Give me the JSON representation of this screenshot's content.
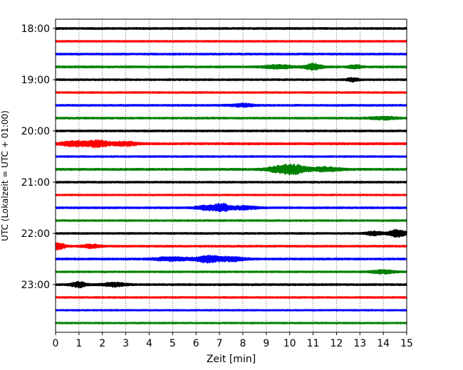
{
  "chart_data": {
    "type": "line",
    "title": "",
    "xlabel": "Zeit  [min]",
    "ylabel": "UTC (Lokalzeit = UTC + 01:00)",
    "xlim": [
      0,
      15
    ],
    "x_ticks": [
      0,
      1,
      2,
      3,
      4,
      5,
      6,
      7,
      8,
      9,
      10,
      11,
      12,
      13,
      14,
      15
    ],
    "x_grid": true,
    "y_ticks": [
      "18:00",
      "19:00",
      "20:00",
      "21:00",
      "22:00",
      "23:00"
    ],
    "y_tick_rows": [
      0,
      4,
      8,
      12,
      16,
      20
    ],
    "trace_interval_min": 15,
    "trace_colors": [
      "#000000",
      "#ff0000",
      "#0000ff",
      "#008000"
    ],
    "traces": [
      {
        "start": "18:00",
        "noise": 0.14,
        "events": []
      },
      {
        "start": "18:15",
        "noise": 0.12,
        "events": []
      },
      {
        "start": "18:30",
        "noise": 0.13,
        "events": []
      },
      {
        "start": "18:45",
        "noise": 0.14,
        "events": [
          {
            "t": 9.5,
            "amp": 0.25,
            "w": 0.6
          },
          {
            "t": 11.0,
            "amp": 0.45,
            "w": 0.35
          },
          {
            "t": 12.8,
            "amp": 0.25,
            "w": 0.25
          }
        ]
      },
      {
        "start": "19:00",
        "noise": 0.13,
        "events": [
          {
            "t": 12.7,
            "amp": 0.25,
            "w": 0.25
          }
        ]
      },
      {
        "start": "19:15",
        "noise": 0.12,
        "events": []
      },
      {
        "start": "19:30",
        "noise": 0.13,
        "events": [
          {
            "t": 8.0,
            "amp": 0.2,
            "w": 0.5
          }
        ]
      },
      {
        "start": "19:45",
        "noise": 0.13,
        "events": [
          {
            "t": 14.0,
            "amp": 0.2,
            "w": 0.6
          }
        ]
      },
      {
        "start": "20:00",
        "noise": 0.13,
        "events": []
      },
      {
        "start": "20:15",
        "noise": 0.15,
        "events": [
          {
            "t": 0.8,
            "amp": 0.35,
            "w": 0.6
          },
          {
            "t": 1.8,
            "amp": 0.45,
            "w": 0.5
          },
          {
            "t": 3.0,
            "amp": 0.3,
            "w": 0.5
          }
        ]
      },
      {
        "start": "20:30",
        "noise": 0.12,
        "events": []
      },
      {
        "start": "20:45",
        "noise": 0.15,
        "events": [
          {
            "t": 9.6,
            "amp": 0.4,
            "w": 0.6
          },
          {
            "t": 10.2,
            "amp": 0.55,
            "w": 0.5
          },
          {
            "t": 11.5,
            "amp": 0.3,
            "w": 0.7
          }
        ]
      },
      {
        "start": "21:00",
        "noise": 0.13,
        "events": []
      },
      {
        "start": "21:15",
        "noise": 0.11,
        "events": []
      },
      {
        "start": "21:30",
        "noise": 0.13,
        "events": [
          {
            "t": 6.5,
            "amp": 0.3,
            "w": 0.5
          },
          {
            "t": 7.1,
            "amp": 0.55,
            "w": 0.3
          },
          {
            "t": 8.0,
            "amp": 0.25,
            "w": 0.6
          }
        ]
      },
      {
        "start": "21:45",
        "noise": 0.12,
        "events": []
      },
      {
        "start": "22:00",
        "noise": 0.13,
        "events": [
          {
            "t": 13.6,
            "amp": 0.3,
            "w": 0.3
          },
          {
            "t": 14.6,
            "amp": 0.5,
            "w": 0.4
          }
        ]
      },
      {
        "start": "22:15",
        "noise": 0.13,
        "events": [
          {
            "t": 0.1,
            "amp": 0.5,
            "w": 0.3
          },
          {
            "t": 1.5,
            "amp": 0.25,
            "w": 0.4
          }
        ]
      },
      {
        "start": "22:30",
        "noise": 0.14,
        "events": [
          {
            "t": 5.0,
            "amp": 0.25,
            "w": 0.8
          },
          {
            "t": 6.5,
            "amp": 0.45,
            "w": 0.5
          },
          {
            "t": 7.5,
            "amp": 0.3,
            "w": 0.6
          }
        ]
      },
      {
        "start": "22:45",
        "noise": 0.12,
        "events": [
          {
            "t": 14.0,
            "amp": 0.25,
            "w": 0.5
          }
        ]
      },
      {
        "start": "23:00",
        "noise": 0.14,
        "events": [
          {
            "t": 1.0,
            "amp": 0.4,
            "w": 0.3
          },
          {
            "t": 2.5,
            "amp": 0.25,
            "w": 0.5
          }
        ]
      },
      {
        "start": "23:15",
        "noise": 0.12,
        "events": []
      },
      {
        "start": "23:30",
        "noise": 0.11,
        "events": []
      },
      {
        "start": "23:45",
        "noise": 0.11,
        "events": []
      }
    ]
  }
}
